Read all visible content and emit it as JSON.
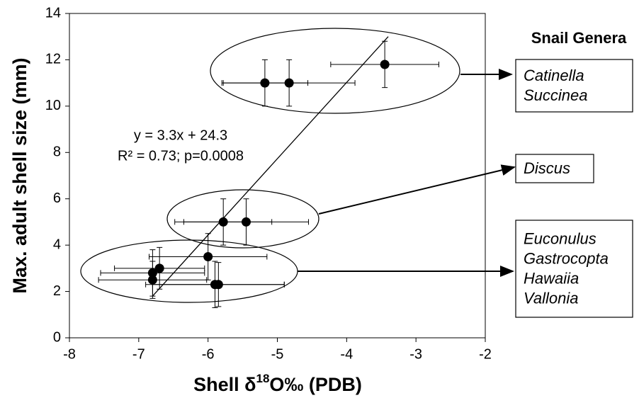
{
  "chart_data": {
    "type": "scatter",
    "y_label": "Max. adult shell size (mm)",
    "x_label": [
      "Shell δ",
      "18",
      "O‰ (PDB)"
    ],
    "xlim": [
      -8,
      -2
    ],
    "xticks": [
      -8,
      -7,
      -6,
      -5,
      -4,
      -3,
      -2
    ],
    "ylim": [
      0,
      14
    ],
    "yticks": [
      0,
      2,
      4,
      6,
      8,
      10,
      12,
      14
    ],
    "series": [
      {
        "color": "#000000",
        "x": [
          -3.45,
          -5.18,
          -4.83,
          -5.78,
          -5.45,
          -6.0,
          -6.7,
          -6.8,
          -6.8,
          -5.9,
          -5.85
        ],
        "values": [
          11.8,
          11.0,
          11.0,
          5.0,
          5.0,
          3.5,
          3.0,
          2.8,
          2.5,
          2.3,
          2.3
        ],
        "xerr": [
          0.78,
          0.62,
          0.95,
          0.7,
          0.9,
          0.85,
          0.65,
          0.75,
          0.78,
          1.0,
          0.95
        ],
        "yerr": [
          1.0,
          1.0,
          1.0,
          1.0,
          1.0,
          1.0,
          0.9,
          1.0,
          0.8,
          1.0,
          0.95
        ]
      }
    ],
    "trendline": {
      "x": [
        -6.8,
        -3.4
      ],
      "y": [
        1.8,
        13.0
      ]
    },
    "equation": [
      "y = 3.3x + 24.3",
      "R² = 0.73; p=0.0008"
    ],
    "legend_title": "Snail Genera",
    "groups": [
      [
        "Catinella",
        "Succinea"
      ],
      [
        "Discus"
      ],
      [
        "Euconulus",
        "Gastrocopta",
        "Hawaiia",
        "Vallonia"
      ]
    ]
  }
}
